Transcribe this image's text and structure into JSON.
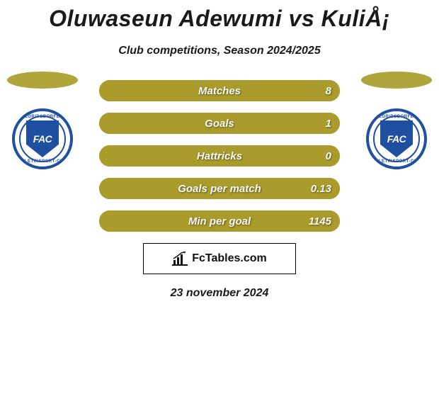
{
  "title": "Oluwaseun Adewumi vs KuliÅ¡",
  "subtitle": "Club competitions, Season 2024/2025",
  "date": "23 november 2024",
  "colors": {
    "bar_fill": "#a99c2c",
    "bar_text": "#f7f7f7",
    "oval_left": "#b0a43c",
    "oval_right": "#b0a43c",
    "badge_ring": "#1f4fa0",
    "badge_shield": "#1f4fa0",
    "label_shadow": "rgba(0,0,0,0.45)"
  },
  "badge": {
    "shield_text": "FAC",
    "arc_top": "FLORIDSDORFER",
    "arc_bottom": "ATHLETIKSPORT-CLUB"
  },
  "stats": [
    {
      "label": "Matches",
      "value": "8"
    },
    {
      "label": "Goals",
      "value": "1"
    },
    {
      "label": "Hattricks",
      "value": "0"
    },
    {
      "label": "Goals per match",
      "value": "0.13"
    },
    {
      "label": "Min per goal",
      "value": "1145"
    }
  ],
  "brand": {
    "text": "FcTables.com"
  }
}
